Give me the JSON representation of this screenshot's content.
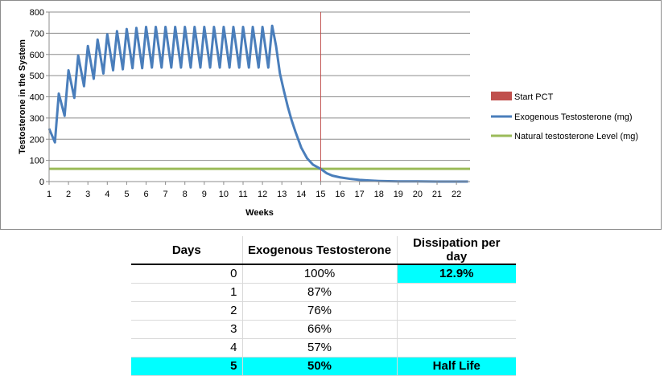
{
  "chart_data": {
    "type": "line",
    "xlabel": "Weeks",
    "ylabel": "Testosterone in the System",
    "xlim": [
      1,
      22.7
    ],
    "ylim": [
      0,
      800
    ],
    "yticks": [
      0,
      100,
      200,
      300,
      400,
      500,
      600,
      700,
      800
    ],
    "xticks": [
      1,
      2,
      3,
      4,
      5,
      6,
      7,
      8,
      9,
      10,
      11,
      12,
      13,
      14,
      15,
      16,
      17,
      18,
      19,
      20,
      21,
      22
    ],
    "grid": "horizontal",
    "legend_position": "right",
    "series": [
      {
        "name": "Exogenous Testosterone (mg)",
        "color": "#4a7ebb",
        "x": [
          1.0,
          1.3,
          1.5,
          1.8,
          2.0,
          2.3,
          2.5,
          2.8,
          3.0,
          3.3,
          3.5,
          3.8,
          4.0,
          4.3,
          4.5,
          4.8,
          5.0,
          5.3,
          5.5,
          5.8,
          6.0,
          6.3,
          6.5,
          6.8,
          7.0,
          7.3,
          7.5,
          7.8,
          8.0,
          8.3,
          8.5,
          8.8,
          9.0,
          9.3,
          9.5,
          9.8,
          10.0,
          10.3,
          10.5,
          10.8,
          11.0,
          11.3,
          11.5,
          11.8,
          12.0,
          12.3,
          12.5,
          12.7,
          12.9,
          13.1,
          13.3,
          13.5,
          13.7,
          14.0,
          14.3,
          14.6,
          15.0,
          15.3,
          15.6,
          16.0,
          16.5,
          17.0,
          17.5,
          18.0,
          18.5,
          19.0,
          20.0,
          21.0,
          22.0,
          22.6
        ],
        "values": [
          250,
          185,
          415,
          310,
          525,
          395,
          595,
          450,
          640,
          485,
          670,
          510,
          695,
          525,
          710,
          530,
          720,
          535,
          725,
          535,
          730,
          538,
          730,
          538,
          730,
          538,
          730,
          538,
          730,
          538,
          730,
          538,
          730,
          538,
          730,
          538,
          730,
          538,
          730,
          538,
          730,
          538,
          730,
          538,
          730,
          538,
          735,
          640,
          510,
          430,
          355,
          290,
          235,
          160,
          110,
          80,
          60,
          40,
          28,
          20,
          13,
          8,
          5,
          3,
          2,
          1,
          1,
          0,
          0,
          0
        ]
      },
      {
        "name": "Natural testosterone Level (mg)",
        "color": "#9bbb59",
        "x": [
          1,
          22.7
        ],
        "values": [
          60,
          60
        ]
      }
    ],
    "markers": [
      {
        "name": "Start PCT",
        "x": 15,
        "color": "#c0504d"
      }
    ]
  },
  "table": {
    "headers": [
      "Days",
      "Exogenous Testosterone",
      "Dissipation per day"
    ],
    "rows": [
      {
        "days": "0",
        "exo": "100%",
        "dis": "12.9%"
      },
      {
        "days": "1",
        "exo": "87%",
        "dis": ""
      },
      {
        "days": "2",
        "exo": "76%",
        "dis": ""
      },
      {
        "days": "3",
        "exo": "66%",
        "dis": ""
      },
      {
        "days": "4",
        "exo": "57%",
        "dis": ""
      },
      {
        "days": "5",
        "exo": "50%",
        "dis": "Half Life"
      }
    ],
    "highlight_color": "#00ffff"
  }
}
